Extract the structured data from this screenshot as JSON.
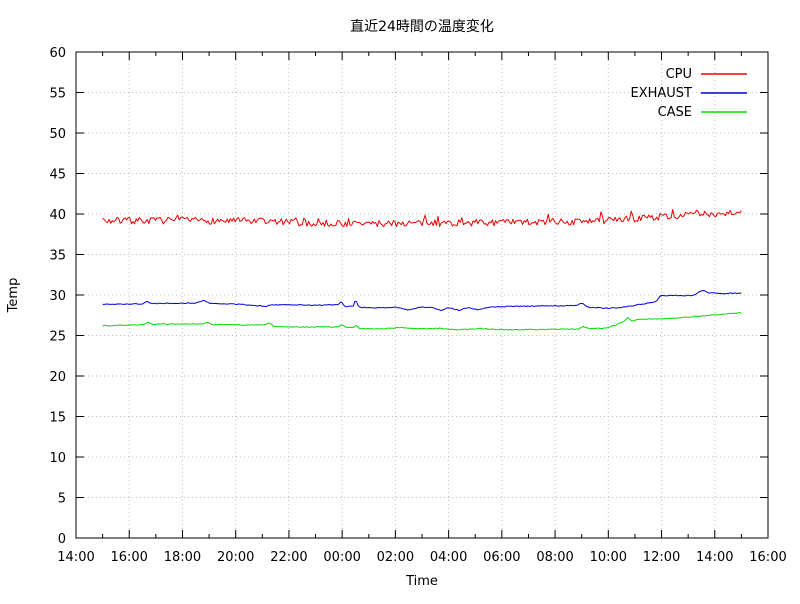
{
  "chart_data": {
    "type": "line",
    "title": "直近24時間の温度変化",
    "xlabel": "Time",
    "ylabel": "Temp",
    "ylim": [
      0,
      60
    ],
    "y_tick_step": 5,
    "y_ticks": [
      0,
      5,
      10,
      15,
      20,
      25,
      30,
      35,
      40,
      45,
      50,
      55,
      60
    ],
    "x_axis_span_hours": 26,
    "x_major_step_hours": 2,
    "x_minor_step_hours": 1,
    "x_tick_labels": [
      "14:00",
      "16:00",
      "18:00",
      "20:00",
      "22:00",
      "00:00",
      "02:00",
      "04:00",
      "06:00",
      "08:00",
      "10:00",
      "12:00",
      "14:00",
      "16:00"
    ],
    "grid": "dotted",
    "legend_position": "top-right",
    "data_start_offset_hours": 1,
    "data_duration_hours": 24,
    "series": [
      {
        "name": "CPU",
        "color": "#ee0000",
        "noise": 0.42,
        "spike_chance": 0.07,
        "spike_amp": 0.55,
        "sample_step_hours": 0.06,
        "keypoints": [
          [
            0,
            39.15
          ],
          [
            2,
            39.2
          ],
          [
            5,
            39.15
          ],
          [
            7,
            39.0
          ],
          [
            7.5,
            38.85
          ],
          [
            10,
            38.8
          ],
          [
            11,
            38.85
          ],
          [
            13,
            38.9
          ],
          [
            15,
            38.95
          ],
          [
            17,
            39.0
          ],
          [
            18.5,
            39.05
          ],
          [
            18.68,
            39.1
          ],
          [
            18.74,
            41.0
          ],
          [
            18.8,
            39.1
          ],
          [
            19.5,
            39.3
          ],
          [
            20.5,
            39.55
          ],
          [
            21.5,
            39.8
          ],
          [
            22.5,
            39.95
          ],
          [
            23.3,
            40.1
          ],
          [
            23.7,
            40.25
          ],
          [
            24,
            40.3
          ]
        ]
      },
      {
        "name": "EXHAUST",
        "color": "#0000dd",
        "noise": 0.05,
        "spike_chance": 0,
        "spike_amp": 0,
        "sample_step_hours": 0.06,
        "keypoints": [
          [
            0,
            28.85
          ],
          [
            1.5,
            28.9
          ],
          [
            1.65,
            29.2
          ],
          [
            1.85,
            28.95
          ],
          [
            3.5,
            29.0
          ],
          [
            3.82,
            29.4
          ],
          [
            4.0,
            28.95
          ],
          [
            5.2,
            28.85
          ],
          [
            6.1,
            28.6
          ],
          [
            6.35,
            28.8
          ],
          [
            8.2,
            28.75
          ],
          [
            8.85,
            28.8
          ],
          [
            8.95,
            29.2
          ],
          [
            9.1,
            28.6
          ],
          [
            9.42,
            28.6
          ],
          [
            9.5,
            29.45
          ],
          [
            9.62,
            28.5
          ],
          [
            10.3,
            28.4
          ],
          [
            11.0,
            28.5
          ],
          [
            11.5,
            28.15
          ],
          [
            11.9,
            28.5
          ],
          [
            12.4,
            28.45
          ],
          [
            12.7,
            28.1
          ],
          [
            13.0,
            28.45
          ],
          [
            13.4,
            28.1
          ],
          [
            13.7,
            28.45
          ],
          [
            14.1,
            28.2
          ],
          [
            14.5,
            28.5
          ],
          [
            15.3,
            28.6
          ],
          [
            17.8,
            28.7
          ],
          [
            18.0,
            29.0
          ],
          [
            18.25,
            28.5
          ],
          [
            19.0,
            28.35
          ],
          [
            19.6,
            28.5
          ],
          [
            20.3,
            28.9
          ],
          [
            20.8,
            29.2
          ],
          [
            20.95,
            29.9
          ],
          [
            22.2,
            29.95
          ],
          [
            22.55,
            30.6
          ],
          [
            22.8,
            30.25
          ],
          [
            23.4,
            30.2
          ],
          [
            24,
            30.25
          ]
        ]
      },
      {
        "name": "CASE",
        "color": "#00dd00",
        "noise": 0.05,
        "spike_chance": 0,
        "spike_amp": 0,
        "sample_step_hours": 0.06,
        "keypoints": [
          [
            0,
            26.2
          ],
          [
            1.0,
            26.3
          ],
          [
            1.55,
            26.35
          ],
          [
            1.7,
            26.6
          ],
          [
            1.9,
            26.4
          ],
          [
            3.75,
            26.4
          ],
          [
            3.92,
            26.65
          ],
          [
            4.1,
            26.35
          ],
          [
            5.5,
            26.3
          ],
          [
            6.1,
            26.3
          ],
          [
            6.25,
            26.6
          ],
          [
            6.45,
            26.1
          ],
          [
            7.5,
            26.05
          ],
          [
            8.85,
            26.05
          ],
          [
            8.97,
            26.4
          ],
          [
            9.15,
            26.0
          ],
          [
            9.45,
            26.0
          ],
          [
            9.52,
            26.35
          ],
          [
            9.65,
            25.85
          ],
          [
            10.5,
            25.8
          ],
          [
            11.2,
            26.0
          ],
          [
            11.8,
            25.8
          ],
          [
            12.6,
            25.9
          ],
          [
            13.3,
            25.7
          ],
          [
            14.2,
            25.85
          ],
          [
            15.2,
            25.7
          ],
          [
            16.5,
            25.75
          ],
          [
            17.9,
            25.8
          ],
          [
            18.05,
            26.15
          ],
          [
            18.25,
            25.85
          ],
          [
            18.9,
            25.9
          ],
          [
            19.3,
            26.3
          ],
          [
            19.6,
            26.75
          ],
          [
            19.72,
            27.3
          ],
          [
            19.88,
            26.75
          ],
          [
            20.15,
            27.0
          ],
          [
            21.3,
            27.1
          ],
          [
            22.3,
            27.35
          ],
          [
            23.4,
            27.65
          ],
          [
            24,
            27.8
          ]
        ]
      }
    ]
  }
}
